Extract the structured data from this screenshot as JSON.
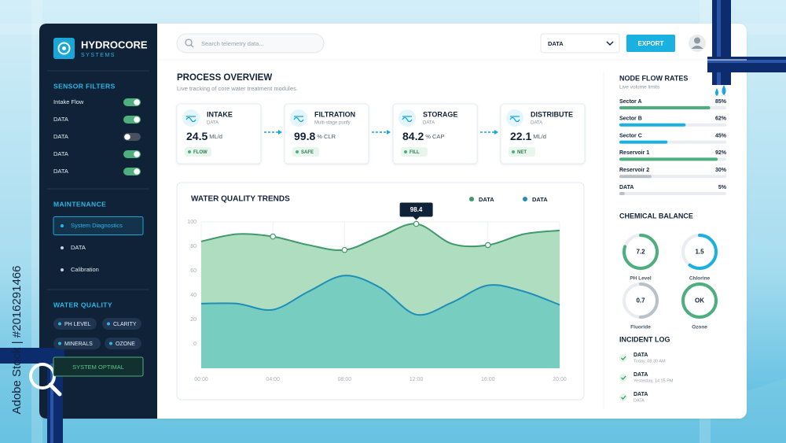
{
  "watermark": "Adobe Stock | #2016291466",
  "brand": {
    "name": "HYDROCORE",
    "tagline": "SYSTEMS"
  },
  "top_bar": {
    "search_placeholder": "Search telemetry data...",
    "dropdown": "DATA",
    "export_button": "EXPORT"
  },
  "sidebar": {
    "sensor_filters": {
      "title": "SENSOR FILTERS",
      "items": [
        {
          "label": "Intake Flow",
          "enabled": true
        },
        {
          "label": "DATA",
          "enabled": true
        },
        {
          "label": "DATA",
          "enabled": false
        },
        {
          "label": "DATA",
          "enabled": true
        },
        {
          "label": "DATA",
          "enabled": true
        }
      ]
    },
    "maintenance": {
      "title": "MAINTENANCE",
      "items": [
        {
          "label": "System Diagnostics",
          "active": true
        },
        {
          "label": "DATA",
          "active": false
        },
        {
          "label": "Calibration",
          "active": false
        }
      ]
    },
    "water_quality": {
      "title": "WATER QUALITY",
      "tags": [
        "PH LEVEL",
        "CLARITY",
        "MINERALS",
        "OZONE"
      ],
      "status": "SYSTEM OPTIMAL"
    }
  },
  "process_overview": {
    "title": "PROCESS OVERVIEW",
    "subtitle": "Live tracking of core water treatment modules.",
    "steps": [
      {
        "name": "INTAKE",
        "detail": "DATA",
        "value": 24.5,
        "unit": "ML/d",
        "tag": "FLOW"
      },
      {
        "name": "FILTRATION",
        "detail": "Multi-stage purify",
        "value": 99.8,
        "unit": "% CLR",
        "tag": "SAFE"
      },
      {
        "name": "STORAGE",
        "detail": "DATA",
        "value": 84.2,
        "unit": "% CAP",
        "tag": "FILL"
      },
      {
        "name": "DISTRIBUTE",
        "detail": "DATA",
        "value": 22.1,
        "unit": "ML/d",
        "tag": "NET"
      }
    ]
  },
  "chart_data": {
    "type": "area",
    "title": "WATER QUALITY TRENDS",
    "categories": [
      "00:00",
      null,
      "04:00",
      null,
      "08:00",
      null,
      "12:00",
      null,
      "16:00",
      null,
      "20:00"
    ],
    "series": [
      {
        "name": "DATA",
        "color": "#3f9a6a",
        "fill": "#aadbbd",
        "values": [
          84,
          90,
          88,
          81,
          77,
          88,
          98.4,
          82,
          81,
          90,
          93
        ]
      },
      {
        "name": "DATA",
        "color": "#1f8fb8",
        "fill": "#74cbbf",
        "values": [
          33,
          33,
          28,
          43,
          56,
          46,
          24,
          34,
          48,
          43,
          32
        ]
      }
    ],
    "ylim": [
      -20,
      100
    ],
    "yticks": [
      0,
      20,
      40,
      60,
      80,
      100
    ],
    "grid": true
  },
  "node_flow_rates": {
    "title": "NODE FLOW RATES",
    "subtitle": "Live volume limits",
    "categories": [
      "Sector A",
      "Sector B",
      "Sector C",
      "Reservoir 1",
      "Reservoir 2",
      "DATA"
    ],
    "values": [
      85,
      62,
      45,
      92,
      30,
      5
    ],
    "value_labels": [
      "85%",
      "62%",
      "45%",
      "92%",
      "30%",
      "5%"
    ],
    "colors": [
      "#4caf7d",
      "#1ab0e0",
      "#1ab0e0",
      "#4caf7d",
      "#b9c0c8",
      "#b9c0c8"
    ]
  },
  "chemical_balance": {
    "title": "CHEMICAL BALANCE",
    "gauges": [
      {
        "label": "PH Level",
        "reading": 7.2,
        "fill": 80,
        "color": "#4caf7d"
      },
      {
        "label": "Chlorine",
        "reading": 1.5,
        "fill": 60,
        "color": "#1ab0e0"
      },
      {
        "label": "Fluoride",
        "reading": 0.7,
        "fill": 50,
        "color": "#b9c0c8"
      },
      {
        "label": "Ozone",
        "reading": "OK",
        "fill": 100,
        "color": "#4caf7d"
      }
    ]
  },
  "incident_log": {
    "title": "INCIDENT LOG",
    "entries": [
      {
        "title": "DATA",
        "time": "Today, 08:30 AM"
      },
      {
        "title": "DATA",
        "time": "Yesterday, 14:15 PM"
      },
      {
        "title": "DATA",
        "time": "DATA"
      }
    ]
  }
}
